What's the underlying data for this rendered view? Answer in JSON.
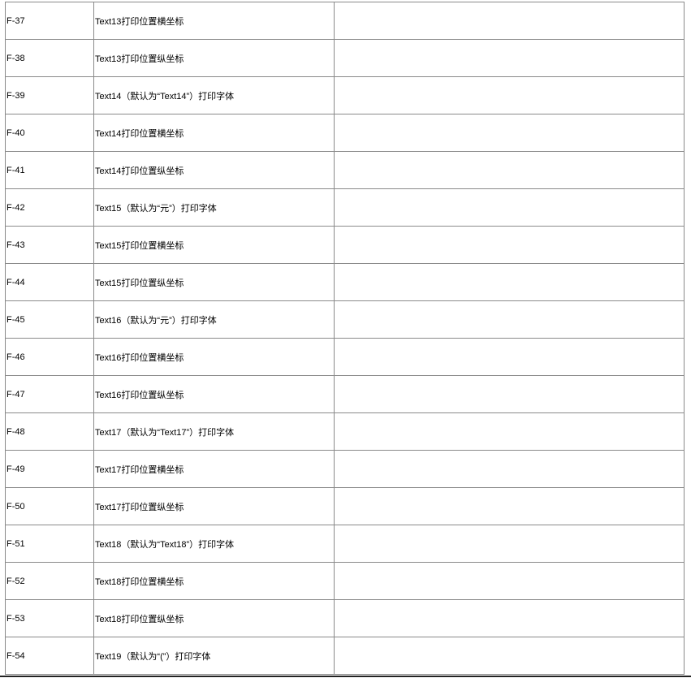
{
  "rows": [
    {
      "id": "F-37",
      "desc": "Text13打印位置横坐标",
      "value": ""
    },
    {
      "id": "F-38",
      "desc": "Text13打印位置纵坐标",
      "value": ""
    },
    {
      "id": "F-39",
      "desc": "Text14（默认为“Text14”）打印字体",
      "value": ""
    },
    {
      "id": "F-40",
      "desc": "Text14打印位置横坐标",
      "value": ""
    },
    {
      "id": "F-41",
      "desc": "Text14打印位置纵坐标",
      "value": ""
    },
    {
      "id": "F-42",
      "desc": "Text15（默认为“元”）打印字体",
      "value": ""
    },
    {
      "id": "F-43",
      "desc": "Text15打印位置横坐标",
      "value": ""
    },
    {
      "id": "F-44",
      "desc": "Text15打印位置纵坐标",
      "value": ""
    },
    {
      "id": "F-45",
      "desc": "Text16（默认为“元”）打印字体",
      "value": ""
    },
    {
      "id": "F-46",
      "desc": "Text16打印位置横坐标",
      "value": ""
    },
    {
      "id": "F-47",
      "desc": "Text16打印位置纵坐标",
      "value": ""
    },
    {
      "id": "F-48",
      "desc": "Text17（默认为“Text17”）打印字体",
      "value": ""
    },
    {
      "id": "F-49",
      "desc": "Text17打印位置横坐标",
      "value": ""
    },
    {
      "id": "F-50",
      "desc": "Text17打印位置纵坐标",
      "value": ""
    },
    {
      "id": "F-51",
      "desc": "Text18（默认为“Text18”）打印字体",
      "value": ""
    },
    {
      "id": "F-52",
      "desc": "Text18打印位置横坐标",
      "value": ""
    },
    {
      "id": "F-53",
      "desc": "Text18打印位置纵坐标",
      "value": ""
    },
    {
      "id": "F-54",
      "desc": "Text19（默认为“(”）打印字体",
      "value": ""
    }
  ]
}
